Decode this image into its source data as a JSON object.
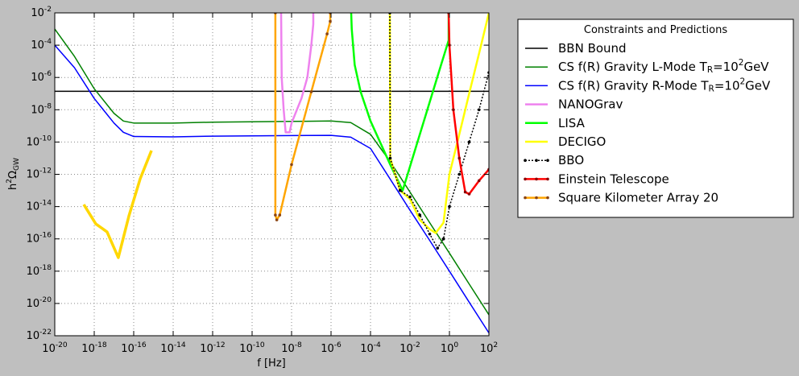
{
  "chart_data": {
    "type": "line",
    "xlabel": "f [Hz]",
    "ylabel": "h^2Ω_GW",
    "xscale": "log",
    "yscale": "log",
    "grid": true,
    "legend_title": "Constraints and Predictions",
    "legend_position": "outside-right",
    "xlim": [
      1e-20,
      100
    ],
    "ylim": [
      1e-22,
      0.01
    ],
    "xticks": [
      {
        "value": 1e-20,
        "label": "10^-20"
      },
      {
        "value": 1e-18,
        "label": "10^-18"
      },
      {
        "value": 1e-16,
        "label": "10^-16"
      },
      {
        "value": 1e-14,
        "label": "10^-14"
      },
      {
        "value": 1e-12,
        "label": "10^-12"
      },
      {
        "value": 1e-10,
        "label": "10^-10"
      },
      {
        "value": 1e-08,
        "label": "10^-8"
      },
      {
        "value": 1e-06,
        "label": "10^-6"
      },
      {
        "value": 0.0001,
        "label": "10^-4"
      },
      {
        "value": 0.01,
        "label": "10^-2"
      },
      {
        "value": 1,
        "label": "10^0"
      },
      {
        "value": 100,
        "label": "10^2"
      }
    ],
    "yticks": [
      {
        "value": 1e-22,
        "label": "10^-22"
      },
      {
        "value": 1e-20,
        "label": "10^-20"
      },
      {
        "value": 1e-18,
        "label": "10^-18"
      },
      {
        "value": 1e-16,
        "label": "10^-16"
      },
      {
        "value": 1e-14,
        "label": "10^-14"
      },
      {
        "value": 1e-12,
        "label": "10^-12"
      },
      {
        "value": 1e-10,
        "label": "10^-10"
      },
      {
        "value": 1e-08,
        "label": "10^-8"
      },
      {
        "value": 1e-06,
        "label": "10^-6"
      },
      {
        "value": 0.0001,
        "label": "10^-4"
      },
      {
        "value": 0.01,
        "label": "10^-2"
      }
    ],
    "series": [
      {
        "name": "BBN Bound",
        "color": "#000000",
        "width": 1.5,
        "x": [
          1e-20,
          100
        ],
        "values": [
          1.4e-07,
          1.4e-07
        ]
      },
      {
        "name": "CS f(R) Gravity L-Mode T_R=10^2GeV",
        "color": "#008000",
        "width": 1.5,
        "x": [
          1e-20,
          1e-19,
          1e-18,
          1e-17,
          3e-17,
          1e-16,
          1e-14,
          1e-12,
          1e-10,
          1e-08,
          1e-06,
          1e-05,
          0.0001,
          0.001,
          0.01,
          0.1,
          1,
          10,
          100
        ],
        "values": [
          0.001,
          2e-05,
          2e-07,
          6e-09,
          2e-09,
          1.5e-09,
          1.5e-09,
          1.7e-09,
          1.8e-09,
          1.9e-09,
          2e-09,
          1.6e-09,
          3e-10,
          6e-12,
          8e-14,
          1e-15,
          1.3e-17,
          1.6e-19,
          2e-21
        ]
      },
      {
        "name": "CS f(R) Gravity R-Mode T_R=10^2GeV",
        "color": "#0000ff",
        "width": 1.5,
        "x": [
          1e-20,
          1e-19,
          1e-18,
          1e-17,
          3e-17,
          1e-16,
          1e-14,
          1e-12,
          1e-10,
          1e-08,
          1e-06,
          1e-05,
          0.0001,
          0.001,
          0.01,
          0.1,
          1,
          10,
          100
        ],
        "values": [
          0.0001,
          4e-06,
          5e-08,
          1.5e-09,
          4e-10,
          2.2e-10,
          2.1e-10,
          2.3e-10,
          2.4e-10,
          2.5e-10,
          2.6e-10,
          2e-10,
          4e-11,
          5e-13,
          6e-15,
          8e-17,
          1e-18,
          1.2e-20,
          1.5e-22
        ]
      },
      {
        "name": "NANOGrav",
        "color": "#ee82ee",
        "width": 2.5,
        "x": [
          2.95e-09,
          3.16e-09,
          3.98e-09,
          5.01e-09,
          7.94e-09,
          1e-08,
          3.16e-08,
          6.31e-08,
          1e-07,
          1.26e-07,
          1.26e-07
        ],
        "values": [
          0.01,
          1e-06,
          1e-08,
          4e-10,
          4e-10,
          1.5e-09,
          5e-08,
          1e-06,
          0.0001,
          0.002,
          0.01
        ]
      },
      {
        "name": "LISA",
        "color": "#00ff00",
        "width": 2.5,
        "x": [
          1.05e-05,
          1.12e-05,
          1.58e-05,
          3.16e-05,
          0.0001,
          0.001,
          0.00427,
          0.01,
          0.1,
          0.316,
          0.912,
          0.912
        ],
        "values": [
          0.01,
          0.001,
          6e-06,
          1.3e-07,
          2e-09,
          4e-12,
          1e-13,
          3e-12,
          3e-08,
          3e-06,
          0.0002,
          0.01
        ]
      },
      {
        "name": "DECIGO",
        "color": "#ffff00",
        "width": 2.5,
        "x": [
          0.000955,
          0.001,
          0.00316,
          0.01,
          0.0316,
          0.1,
          0.2,
          0.5,
          1,
          3.16,
          10,
          31.6,
          100
        ],
        "values": [
          0.01,
          1e-11,
          1e-13,
          3e-14,
          1.5e-15,
          4e-16,
          2.3e-16,
          1e-15,
          1e-12,
          3e-10,
          1e-07,
          3e-05,
          0.01
        ]
      },
      {
        "name": "BBO",
        "color": "#000000",
        "width": 1.5,
        "dash": "2,2",
        "marker_color": "#000000",
        "x": [
          0.000955,
          0.001,
          0.00316,
          0.01,
          0.0316,
          0.1,
          0.25,
          0.5,
          1,
          3.16,
          10,
          31.6,
          100
        ],
        "values": [
          0.01,
          1e-11,
          1e-13,
          4e-14,
          3e-15,
          2e-16,
          2.7e-17,
          1e-16,
          1e-14,
          1e-12,
          1e-10,
          1e-08,
          2e-06
        ]
      },
      {
        "name": "Einstein Telescope",
        "color": "#ff0000",
        "width": 2.5,
        "marker_color": "#8b0000",
        "x": [
          0.912,
          1,
          1.58,
          3.16,
          6.31,
          10,
          31.6,
          100
        ],
        "values": [
          0.01,
          0.0001,
          1e-08,
          1e-11,
          8e-14,
          6e-14,
          4e-13,
          2e-12
        ]
      },
      {
        "name": "Square Kilometer Array 20",
        "color": "#ffa500",
        "width": 2.5,
        "marker_color": "#8b4513",
        "x": [
          1.51e-09,
          1.51e-09,
          1.78e-09,
          2.51e-09,
          1e-08,
          1e-07,
          6.31e-07,
          9.12e-07,
          9.12e-07
        ],
        "values": [
          0.01,
          3e-15,
          1.5e-15,
          3e-15,
          4e-12,
          1.3e-07,
          0.0005,
          0.003,
          0.01
        ]
      },
      {
        "color": "#ffd700",
        "width": 3.5,
        "x": [
          2.95e-19,
          1.2e-18,
          4.47e-18,
          1.66e-17,
          5.75e-17,
          2.14e-16,
          7.94e-16
        ],
        "values": [
          1.35e-14,
          8.5e-16,
          2.7e-16,
          6.9e-18,
          2.7e-15,
          5.4e-13,
          2.95e-11
        ]
      }
    ]
  }
}
